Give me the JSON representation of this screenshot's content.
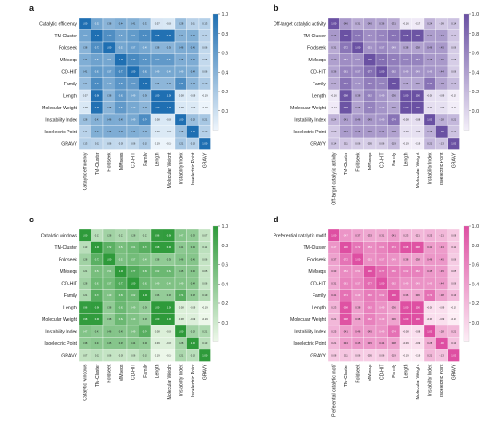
{
  "figure": {
    "panels": [
      {
        "letter": "a",
        "first_label": "Catalytic efficiency",
        "color": "#1f6fb2",
        "light": "#eef5fc"
      },
      {
        "letter": "b",
        "first_label": "Off-target catalytic activity",
        "color": "#6a51a3",
        "light": "#f3eef9"
      },
      {
        "letter": "c",
        "first_label": "Catalytic windows",
        "color": "#2e9a3a",
        "light": "#eef8ea"
      },
      {
        "letter": "d",
        "first_label": "Preferential catalytic motif",
        "color": "#de4fa2",
        "light": "#fdeef6"
      }
    ],
    "shared_labels": [
      "TM-Cluster",
      "Foldseek",
      "MMseqs",
      "CD-HIT",
      "Family",
      "Length",
      "Molecular Weight",
      "Instability Index",
      "Isoelectric Point",
      "GRAVY"
    ],
    "colorbar_ticks": [
      "1.0",
      "0.8",
      "0.6",
      "0.4",
      "0.2",
      "0.0"
    ]
  },
  "chart_data": [
    {
      "type": "heatmap",
      "panel": "a",
      "labels": [
        "Catalytic efficiency",
        "TM-Cluster",
        "Foldseek",
        "MMseqs",
        "CD-HIT",
        "Family",
        "Length",
        "Molecular Weight",
        "Instability Index",
        "Isoelectric Point",
        "GRAVY"
      ],
      "vmin": -0.2,
      "vmax": 1.0,
      "colorbar_ticks": [
        1.0,
        0.8,
        0.6,
        0.4,
        0.2,
        0.0
      ],
      "first_row": [
        1.0,
        0.52,
        0.38,
        0.44,
        0.41,
        0.31,
        -0.07,
        -0.08,
        0.28,
        0.11,
        0.13
      ]
    },
    {
      "type": "heatmap",
      "panel": "b",
      "labels": [
        "Off-target catalytic activity",
        "TM-Cluster",
        "Foldseek",
        "MMseqs",
        "CD-HIT",
        "Family",
        "Length",
        "Molecular Weight",
        "Instability Index",
        "Isoelectric Point",
        "GRAVY"
      ],
      "vmin": -0.2,
      "vmax": 1.0,
      "colorbar_ticks": [
        1.0,
        0.8,
        0.6,
        0.4,
        0.2,
        0.0
      ],
      "first_row": [
        1.0,
        0.46,
        0.31,
        0.4,
        0.36,
        0.31,
        -0.16,
        -0.17,
        0.24,
        0.09,
        0.14
      ]
    },
    {
      "type": "heatmap",
      "panel": "c",
      "labels": [
        "Catalytic windows",
        "TM-Cluster",
        "Foldseek",
        "MMseqs",
        "CD-HIT",
        "Family",
        "Length",
        "Molecular Weight",
        "Instability Index",
        "Isoelectric Point",
        "GRAVY"
      ],
      "vmin": -0.2,
      "vmax": 1.0,
      "colorbar_ticks": [
        1.0,
        0.8,
        0.6,
        0.4,
        0.2,
        0.0
      ],
      "first_row": [
        1.0,
        0.13,
        0.28,
        0.21,
        0.28,
        0.21,
        0.96,
        0.98,
        0.47,
        0.38,
        0.07
      ]
    },
    {
      "type": "heatmap",
      "panel": "d",
      "labels": [
        "Preferential catalytic motif",
        "TM-Cluster",
        "Foldseek",
        "MMseqs",
        "CD-HIT",
        "Family",
        "Length",
        "Molecular Weight",
        "Instability Index",
        "Isoelectric Point",
        "GRAVY"
      ],
      "vmin": -0.2,
      "vmax": 1.0,
      "colorbar_ticks": [
        1.0,
        0.8,
        0.6,
        0.4,
        0.2,
        0.0
      ],
      "first_row": [
        1.0,
        0.47,
        0.37,
        0.33,
        0.31,
        0.41,
        0.23,
        0.21,
        0.25,
        0.21,
        0.08
      ]
    }
  ],
  "shared_block": {
    "rows": [
      [
        1.0,
        0.72,
        0.54,
        0.61,
        0.74,
        0.98,
        0.98,
        0.41,
        0.43,
        0.11
      ],
      [
        0.72,
        1.0,
        0.51,
        0.57,
        0.49,
        0.38,
        0.38,
        0.46,
        0.45,
        0.06
      ],
      [
        0.54,
        0.51,
        1.0,
        0.77,
        0.66,
        0.62,
        0.62,
        0.45,
        0.45,
        0.05
      ],
      [
        0.61,
        0.57,
        0.77,
        1.0,
        0.62,
        0.49,
        0.49,
        0.49,
        0.44,
        0.06
      ],
      [
        0.74,
        0.49,
        0.66,
        0.62,
        1.0,
        0.36,
        0.36,
        0.74,
        0.38,
        0.19
      ],
      [
        0.98,
        0.38,
        0.62,
        0.49,
        0.36,
        1.0,
        1.0,
        -0.08,
        -0.09,
        -0.19
      ],
      [
        0.98,
        0.38,
        0.62,
        0.49,
        0.36,
        1.0,
        1.0,
        -0.08,
        -0.09,
        -0.19
      ],
      [
        0.41,
        0.46,
        0.45,
        0.49,
        0.74,
        -0.08,
        -0.08,
        1.0,
        0.28,
        0.21
      ],
      [
        0.43,
        0.45,
        0.45,
        0.44,
        0.38,
        -0.09,
        -0.09,
        0.28,
        1.0,
        0.13
      ],
      [
        0.11,
        0.06,
        0.05,
        0.06,
        0.19,
        -0.19,
        -0.19,
        0.21,
        0.13,
        1.0
      ]
    ]
  }
}
